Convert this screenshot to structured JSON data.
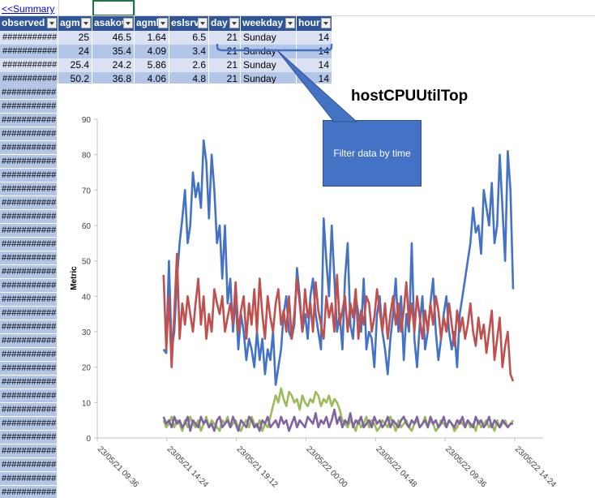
{
  "summary_link": "<<Summary",
  "columns": [
    "observed",
    "agm",
    "asakov",
    "agmk",
    "eslsrv",
    "day",
    "weekday",
    "hour"
  ],
  "rows": [
    [
      "###########",
      "25",
      "46.5",
      "1.64",
      "6.5",
      "21",
      "Sunday",
      "14"
    ],
    [
      "###########",
      "24",
      "35.4",
      "4.09",
      "3.4",
      "21",
      "Sunday",
      "14"
    ],
    [
      "###########",
      "25.4",
      "24.2",
      "5.86",
      "2.6",
      "21",
      "Sunday",
      "14"
    ],
    [
      "###########",
      "50.2",
      "36.8",
      "4.06",
      "4.8",
      "21",
      "Sunday",
      "14"
    ]
  ],
  "observed_placeholder": "###########",
  "callout_text": "Filter data by time",
  "chart_data": {
    "type": "line",
    "title": "hostCPUUtilTop",
    "ylabel": "Metric",
    "xlabel": "",
    "ylim": [
      0,
      90
    ],
    "yticks": [
      0,
      10,
      20,
      30,
      40,
      50,
      60,
      70,
      80,
      90
    ],
    "xticks": [
      "23/05/21 09:36",
      "23/05/21 14:24",
      "23/05/21 19:12",
      "23/05/22 00:00",
      "23/05/22 04:48",
      "23/05/22 09:36",
      "23/05/22 14:24"
    ],
    "grid": false,
    "legend": "none",
    "series": [
      {
        "color": "#4472c4",
        "values": [
          25,
          24,
          50,
          25,
          30,
          45,
          55,
          62,
          70,
          55,
          60,
          75,
          68,
          72,
          65,
          84,
          78,
          62,
          80,
          70,
          55,
          60,
          45,
          60,
          38,
          45,
          30,
          40,
          25,
          35,
          30,
          22,
          28,
          25,
          20,
          30,
          22,
          28,
          18,
          25,
          22,
          30,
          15,
          20,
          25,
          35,
          40,
          30,
          28,
          32,
          48,
          40,
          30,
          35,
          28,
          40,
          45,
          35,
          30,
          25,
          62,
          50,
          40,
          60,
          45,
          30,
          35,
          25,
          45,
          55,
          32,
          28,
          40,
          35,
          30,
          45,
          25,
          30,
          28,
          20,
          35,
          40,
          30,
          25,
          18,
          28,
          35,
          45,
          30,
          40,
          22,
          35,
          30,
          55,
          28,
          20,
          32,
          40,
          25,
          30,
          38,
          45,
          30,
          22,
          28,
          35,
          40,
          30,
          25,
          30,
          20,
          35,
          40,
          45,
          50,
          55,
          65,
          58,
          60,
          52,
          70,
          65,
          60,
          72,
          55,
          60,
          80,
          65,
          50,
          81,
          70,
          42
        ]
      },
      {
        "color": "#c0504d",
        "values": [
          46,
          25,
          40,
          20,
          35,
          52,
          28,
          38,
          32,
          40,
          35,
          30,
          38,
          45,
          32,
          40,
          28,
          35,
          30,
          42,
          38,
          35,
          40,
          30,
          34,
          38,
          32,
          44,
          30,
          36,
          40,
          28,
          38,
          32,
          42,
          30,
          45,
          35,
          28,
          40,
          34,
          30,
          38,
          42,
          32,
          36,
          30,
          40,
          28,
          35,
          45,
          38,
          30,
          42,
          34,
          38,
          30,
          44,
          36,
          32,
          28,
          40,
          34,
          38,
          30,
          46,
          32,
          36,
          40,
          30,
          38,
          34,
          42,
          28,
          36,
          32,
          40,
          38,
          30,
          34,
          42,
          36,
          30,
          38,
          28,
          35,
          40,
          32,
          38,
          30,
          36,
          44,
          32,
          38,
          30,
          40,
          34,
          28,
          36,
          30,
          38,
          32,
          40,
          36,
          28,
          34,
          30,
          38,
          32,
          26,
          36,
          30,
          34,
          28,
          32,
          38,
          30,
          26,
          34,
          28,
          32,
          24,
          30,
          36,
          22,
          28,
          34,
          20,
          26,
          30,
          18,
          16
        ]
      },
      {
        "color": "#9bbb59",
        "values": [
          5,
          3,
          4,
          6,
          3,
          5,
          4,
          2,
          5,
          3,
          6,
          4,
          3,
          5,
          2,
          4,
          6,
          3,
          5,
          4,
          3,
          2,
          5,
          4,
          6,
          3,
          4,
          5,
          3,
          2,
          4,
          5,
          3,
          6,
          4,
          3,
          5,
          2,
          4,
          3,
          6,
          9,
          12,
          10,
          14,
          11,
          9,
          13,
          12,
          10,
          11,
          8,
          12,
          10,
          9,
          11,
          10,
          13,
          12,
          9,
          11,
          10,
          12,
          9,
          11,
          10,
          8,
          5,
          4,
          3,
          5,
          4,
          2,
          5,
          3,
          4,
          6,
          3,
          5,
          4,
          2,
          3,
          5,
          4,
          3,
          6,
          4,
          2,
          5,
          3,
          4,
          5,
          3,
          2,
          4,
          5,
          3,
          4,
          6,
          3,
          5,
          4,
          2,
          3,
          5,
          4,
          3,
          5,
          4,
          2,
          3,
          5,
          4,
          3,
          5,
          3,
          4,
          2,
          5,
          3,
          4,
          5,
          3,
          4,
          2,
          5,
          3,
          4,
          5,
          3,
          4,
          5
        ]
      },
      {
        "color": "#8064a2",
        "values": [
          6,
          4,
          5,
          3,
          6,
          4,
          5,
          3,
          4,
          6,
          2,
          5,
          4,
          3,
          6,
          4,
          5,
          3,
          4,
          2,
          5,
          6,
          3,
          4,
          5,
          3,
          6,
          4,
          2,
          5,
          4,
          3,
          6,
          5,
          3,
          4,
          2,
          5,
          4,
          6,
          3,
          4,
          5,
          3,
          6,
          4,
          5,
          2,
          4,
          6,
          3,
          5,
          4,
          3,
          6,
          5,
          4,
          7,
          3,
          5,
          4,
          6,
          3,
          5,
          8,
          4,
          6,
          3,
          5,
          4,
          7,
          3,
          5,
          4,
          6,
          3,
          4,
          5,
          3,
          6,
          4,
          5,
          3,
          4,
          6,
          3,
          5,
          4,
          3,
          5,
          6,
          4,
          3,
          5,
          4,
          6,
          3,
          4,
          5,
          3,
          6,
          4,
          5,
          3,
          4,
          6,
          3,
          5,
          4,
          3,
          5,
          4,
          6,
          3,
          5,
          4,
          3,
          6,
          4,
          5,
          3,
          4,
          6,
          3,
          5,
          4,
          3,
          5,
          4,
          3,
          4,
          4
        ]
      }
    ]
  }
}
